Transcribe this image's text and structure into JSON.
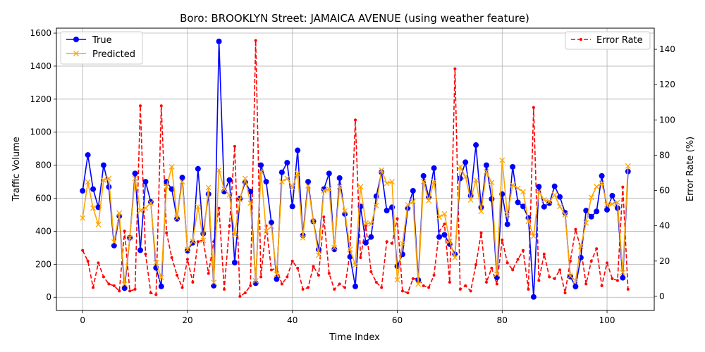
{
  "chart_data": {
    "type": "line",
    "title": "Boro: BROOKLYN Street: JAMAICA AVENUE (using weather feature)",
    "xlabel": "Time Index",
    "ylabel": "Traffic Volume",
    "y2label": "Error Rate (%)",
    "xlim": [
      -5,
      109
    ],
    "ylim": [
      -80,
      1630
    ],
    "y2lim": [
      -8,
      152
    ],
    "xticks": [
      0,
      20,
      40,
      60,
      80,
      100
    ],
    "yticks": [
      0,
      200,
      400,
      600,
      800,
      1000,
      1200,
      1400,
      1600
    ],
    "y2ticks": [
      0,
      20,
      40,
      60,
      80,
      100,
      120,
      140
    ],
    "grid": true,
    "legend_left": "upper left",
    "legend_right": "upper right",
    "colors": {
      "true": "#0000ff",
      "predicted": "#ffa500",
      "error": "#ff0000"
    },
    "series": [
      {
        "name": "True",
        "axis": "left",
        "marker": "circle",
        "values": [
          645,
          862,
          655,
          545,
          800,
          668,
          313,
          492,
          55,
          360,
          750,
          285,
          700,
          578,
          178,
          66,
          700,
          655,
          475,
          725,
          282,
          330,
          778,
          385,
          625,
          70,
          1550,
          640,
          710,
          210,
          598,
          698,
          640,
          85,
          800,
          700,
          452,
          110,
          757,
          815,
          550,
          890,
          375,
          700,
          460,
          290,
          655,
          750,
          290,
          722,
          505,
          245,
          66,
          550,
          330,
          365,
          612,
          757,
          525,
          545,
          188,
          260,
          540,
          645,
          105,
          735,
          605,
          782,
          365,
          378,
          322,
          260,
          720,
          818,
          615,
          922,
          545,
          800,
          595,
          120,
          625,
          442,
          790,
          575,
          550,
          480,
          2,
          670,
          548,
          570,
          672,
          608,
          512,
          125,
          65,
          240,
          525,
          488,
          520,
          735,
          530,
          615,
          540,
          118,
          762
        ]
      },
      {
        "name": "Predicted",
        "axis": "left",
        "marker": "x",
        "values": [
          480,
          698,
          540,
          440,
          710,
          720,
          335,
          510,
          80,
          360,
          720,
          525,
          540,
          572,
          210,
          120,
          670,
          790,
          480,
          700,
          290,
          340,
          548,
          345,
          665,
          90,
          770,
          655,
          620,
          380,
          592,
          720,
          570,
          100,
          760,
          400,
          430,
          140,
          700,
          720,
          665,
          750,
          360,
          675,
          460,
          255,
          645,
          655,
          300,
          670,
          522,
          290,
          195,
          670,
          450,
          445,
          555,
          770,
          690,
          700,
          105,
          325,
          560,
          580,
          80,
          700,
          585,
          700,
          485,
          505,
          340,
          240,
          790,
          730,
          590,
          710,
          520,
          760,
          695,
          140,
          830,
          500,
          680,
          660,
          640,
          460,
          370,
          640,
          590,
          580,
          620,
          550,
          500,
          128,
          100,
          310,
          450,
          605,
          670,
          690,
          560,
          565,
          575,
          150,
          795
        ]
      },
      {
        "name": "Error Rate",
        "axis": "right",
        "marker": "dot",
        "values": [
          26,
          20,
          5,
          19,
          11,
          7,
          6,
          3,
          37,
          3,
          4,
          108,
          24,
          2,
          1,
          108,
          36,
          22,
          12,
          5,
          21,
          8,
          31,
          32,
          13,
          31,
          50,
          4,
          40,
          85,
          0,
          2,
          6,
          145,
          11,
          40,
          15,
          16,
          7,
          11,
          20,
          16,
          4,
          5,
          17,
          12,
          45,
          13,
          4,
          7,
          5,
          25,
          100,
          22,
          40,
          14,
          8,
          5,
          31,
          30,
          44,
          3,
          2,
          10,
          10,
          6,
          5,
          12,
          37,
          41,
          8,
          129,
          4,
          6,
          3,
          18,
          36,
          8,
          16,
          7,
          32,
          19,
          15,
          21,
          26,
          4,
          107,
          9,
          24,
          11,
          10,
          15,
          2,
          20,
          38,
          27,
          7,
          20,
          27,
          6,
          19,
          10,
          9,
          62,
          4
        ]
      }
    ]
  }
}
